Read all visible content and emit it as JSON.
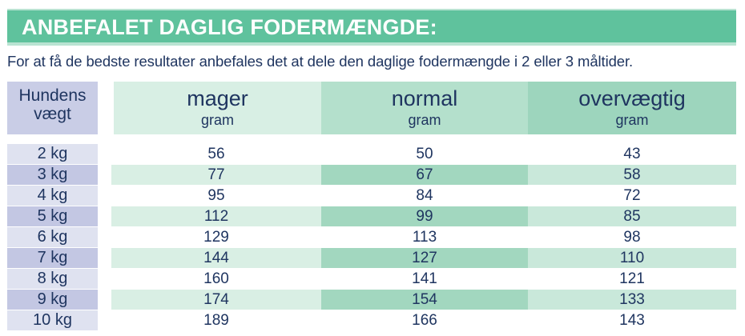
{
  "title": "ANBEFALET DAGLIG FODERMÆNGDE:",
  "intro": "For at få de bedste resultater anbefales det at dele den daglige fodermængde i 2 eller 3 måltider.",
  "table": {
    "weight_header": [
      "Hundens",
      "vægt"
    ],
    "columns": [
      {
        "label": "mager",
        "unit": "gram"
      },
      {
        "label": "normal",
        "unit": "gram"
      },
      {
        "label": "overvægtig",
        "unit": "gram"
      }
    ],
    "rows": [
      {
        "weight": "2 kg",
        "values": [
          "56",
          "50",
          "43"
        ]
      },
      {
        "weight": "3 kg",
        "values": [
          "77",
          "67",
          "58"
        ]
      },
      {
        "weight": "4 kg",
        "values": [
          "95",
          "84",
          "72"
        ]
      },
      {
        "weight": "5 kg",
        "values": [
          "112",
          "99",
          "85"
        ]
      },
      {
        "weight": "6 kg",
        "values": [
          "129",
          "113",
          "98"
        ]
      },
      {
        "weight": "7 kg",
        "values": [
          "144",
          "127",
          "110"
        ]
      },
      {
        "weight": "8 kg",
        "values": [
          "160",
          "141",
          "121"
        ]
      },
      {
        "weight": "9 kg",
        "values": [
          "174",
          "154",
          "133"
        ]
      },
      {
        "weight": "10 kg",
        "values": [
          "189",
          "166",
          "143"
        ]
      }
    ]
  }
}
